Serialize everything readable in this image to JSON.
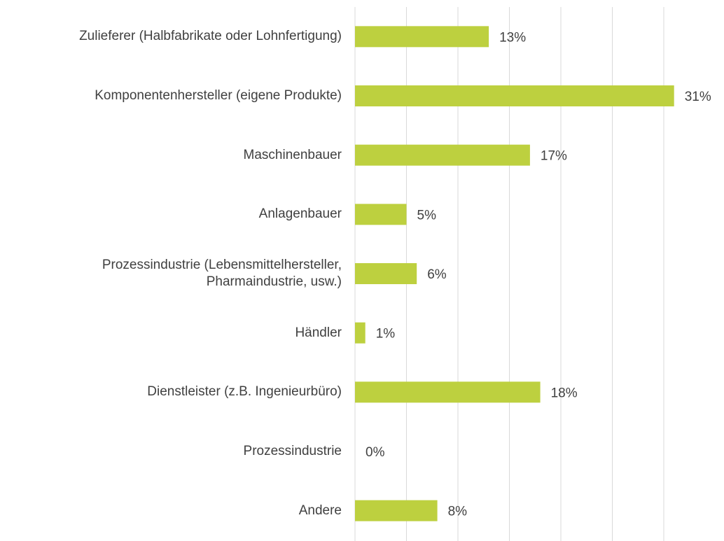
{
  "chart_data": {
    "type": "bar",
    "orientation": "horizontal",
    "categories": [
      "Zulieferer (Halbfabrikate oder Lohnfertigung)",
      "Komponentenhersteller (eigene Produkte)",
      "Maschinenbauer",
      "Anlagenbauer",
      "Prozessindustrie (Lebensmittelhersteller,\nPharmaindustrie, usw.)",
      "Händler",
      "Dienstleister (z.B. Ingenieurbüro)",
      "Prozessindustrie",
      "Andere"
    ],
    "values": [
      13,
      31,
      17,
      5,
      6,
      1,
      18,
      0,
      8
    ],
    "value_labels": [
      "13%",
      "31%",
      "17%",
      "5%",
      "6%",
      "1%",
      "18%",
      "0%",
      "8%"
    ],
    "color": "#bdd03f",
    "xlim": [
      0,
      35
    ],
    "xticks": [
      0,
      5,
      10,
      15,
      20,
      25,
      30
    ],
    "grid": true
  }
}
